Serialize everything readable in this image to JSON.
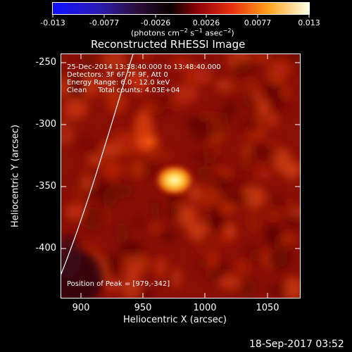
{
  "colorbar": {
    "ticks": [
      "-0.013",
      "-0.0077",
      "-0.0026",
      "0.0026",
      "0.0077",
      "0.013"
    ],
    "units_text": "(photons cm",
    "units_exp1": "−2",
    "units_mid": " s",
    "units_exp2": "−1",
    "units_mid2": " asec",
    "units_exp3": "−2",
    "units_end": ")"
  },
  "image": {
    "title": "Reconstructed RHESSI Image",
    "annotations": {
      "line1": "25-Dec-2014 13:38:40.000 to 13:48:40.000",
      "line2": "Detectors: 3F 6F 7F 9F, Att 0",
      "line3": "Energy Range: 6.0 - 12.0 keV",
      "line4": "Clean     Total counts: 4.03E+04"
    },
    "peak_text": "Position of Peak = [979,-342]",
    "peak_position": [
      979,
      -342
    ]
  },
  "axes": {
    "xlabel": "Heliocentric X (arcsec)",
    "ylabel": "Heliocentric Y (arcsec)",
    "xticks": [
      "900",
      "950",
      "1000",
      "1050"
    ],
    "yticks": [
      "-250",
      "-300",
      "-350",
      "-400"
    ],
    "xlim": [
      880,
      1075
    ],
    "ylim": [
      -435,
      -240
    ]
  },
  "footer": {
    "timestamp": "18-Sep-2017 03:52"
  }
}
